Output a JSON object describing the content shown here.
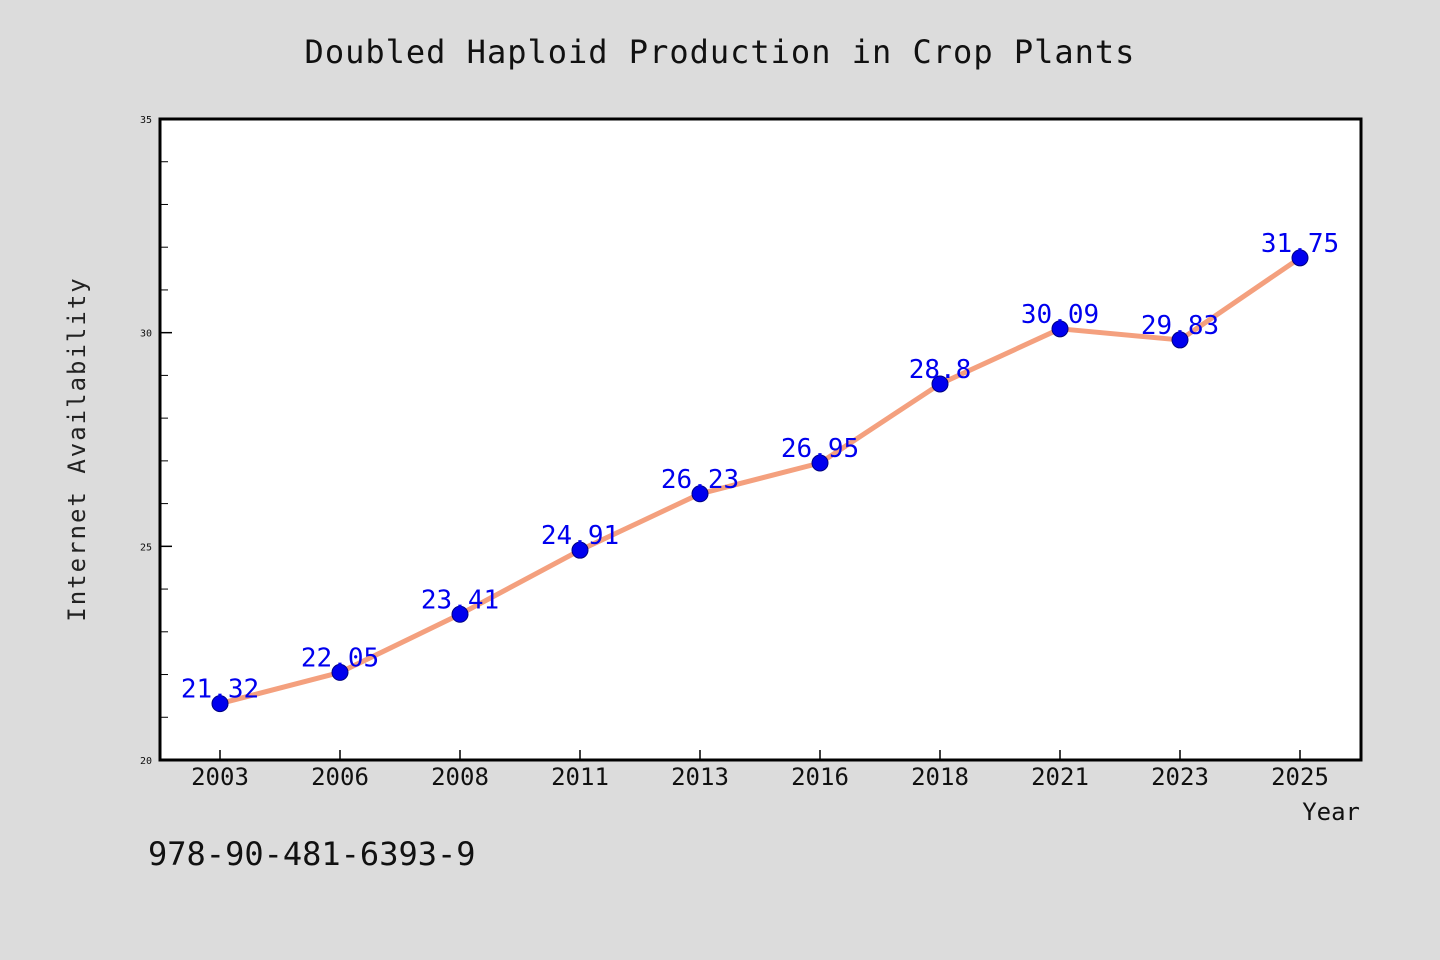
{
  "chart_data": {
    "type": "line",
    "title": "Doubled Haploid Production in Crop Plants",
    "xlabel": "Year",
    "ylabel": "Internet Availability",
    "categories": [
      "2003",
      "2006",
      "2008",
      "2011",
      "2013",
      "2016",
      "2018",
      "2021",
      "2023",
      "2025"
    ],
    "series": [
      {
        "values": [
          21.32,
          22.05,
          23.41,
          24.91,
          26.23,
          26.95,
          28.8,
          30.09,
          29.83,
          31.75
        ],
        "labels": [
          "21.32",
          "22.05",
          "23.41",
          "24.91",
          "26.23",
          "26.95",
          "28.8",
          "30.09",
          "29.83",
          "31.75"
        ]
      }
    ],
    "ylim": [
      20,
      35
    ],
    "yticks": [
      "20",
      "25",
      "30",
      "35"
    ],
    "grid": false,
    "legend": "none",
    "colors": {
      "line": "#f4a07e",
      "marker": "#0000ee",
      "data_label": "#0000ee",
      "plot_background": "#ffffff",
      "figure_background": "#dcdcdc"
    }
  },
  "footnote": "978-90-481-6393-9"
}
